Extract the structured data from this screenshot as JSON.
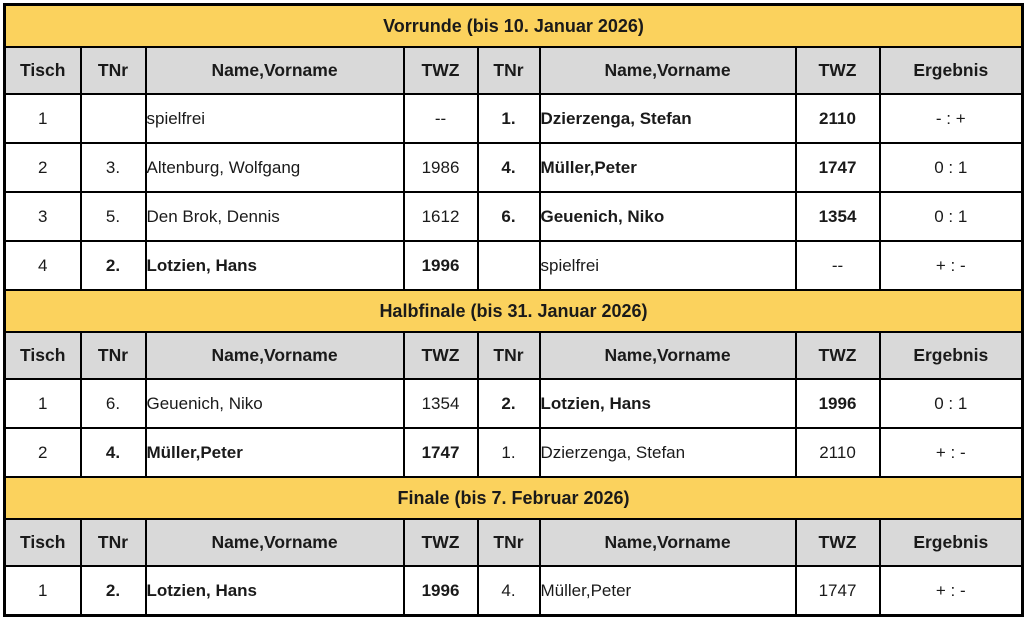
{
  "colors": {
    "section_header_bg": "#FBD25D",
    "table_header_bg": "#D9D9D9",
    "winner_highlight_bg": "#7DC540",
    "border": "#000000",
    "text": "#1a1a1a",
    "row_bg": "#ffffff"
  },
  "columns": [
    "Tisch",
    "TNr",
    "Name,Vorname",
    "TWZ",
    "TNr",
    "Name,Vorname",
    "TWZ",
    "Ergebnis"
  ],
  "sections": [
    {
      "title": "Vorrunde (bis 10. Januar 2026)",
      "rows": [
        {
          "tisch": "1",
          "p1": {
            "tnr": "",
            "name": "spielfrei",
            "twz": "--",
            "bold": false,
            "highlight": false
          },
          "p2": {
            "tnr": "1.",
            "name": "Dzierzenga, Stefan",
            "twz": "2110",
            "bold": true,
            "highlight": false
          },
          "ergebnis": "- : +"
        },
        {
          "tisch": "2",
          "p1": {
            "tnr": "3.",
            "name": "Altenburg, Wolfgang",
            "twz": "1986",
            "bold": false,
            "highlight": false
          },
          "p2": {
            "tnr": "4.",
            "name": "Müller,Peter",
            "twz": "1747",
            "bold": true,
            "highlight": false
          },
          "ergebnis": "0 : 1"
        },
        {
          "tisch": "3",
          "p1": {
            "tnr": "5.",
            "name": "Den Brok, Dennis",
            "twz": "1612",
            "bold": false,
            "highlight": false
          },
          "p2": {
            "tnr": "6.",
            "name": "Geuenich, Niko",
            "twz": "1354",
            "bold": true,
            "highlight": false
          },
          "ergebnis": "0 : 1"
        },
        {
          "tisch": "4",
          "p1": {
            "tnr": "2.",
            "name": "Lotzien, Hans",
            "twz": "1996",
            "bold": true,
            "highlight": false
          },
          "p2": {
            "tnr": "",
            "name": "spielfrei",
            "twz": "--",
            "bold": false,
            "highlight": false
          },
          "ergebnis": "+ : -"
        }
      ]
    },
    {
      "title": "Halbfinale (bis 31. Januar 2026)",
      "rows": [
        {
          "tisch": "1",
          "p1": {
            "tnr": "6.",
            "name": "Geuenich, Niko",
            "twz": "1354",
            "bold": false,
            "highlight": false
          },
          "p2": {
            "tnr": "2.",
            "name": "Lotzien, Hans",
            "twz": "1996",
            "bold": true,
            "highlight": false
          },
          "ergebnis": "0 : 1"
        },
        {
          "tisch": "2",
          "p1": {
            "tnr": "4.",
            "name": "Müller,Peter",
            "twz": "1747",
            "bold": true,
            "highlight": false
          },
          "p2": {
            "tnr": "1.",
            "name": "Dzierzenga, Stefan",
            "twz": "2110",
            "bold": false,
            "highlight": false
          },
          "ergebnis": "+ : -"
        }
      ]
    },
    {
      "title": "Finale (bis 7. Februar 2026)",
      "rows": [
        {
          "tisch": "1",
          "p1": {
            "tnr": "2.",
            "name": "Lotzien, Hans",
            "twz": "1996",
            "bold": true,
            "highlight": true
          },
          "p2": {
            "tnr": "4.",
            "name": "Müller,Peter",
            "twz": "1747",
            "bold": false,
            "highlight": false
          },
          "ergebnis": "+ : -"
        }
      ]
    }
  ]
}
